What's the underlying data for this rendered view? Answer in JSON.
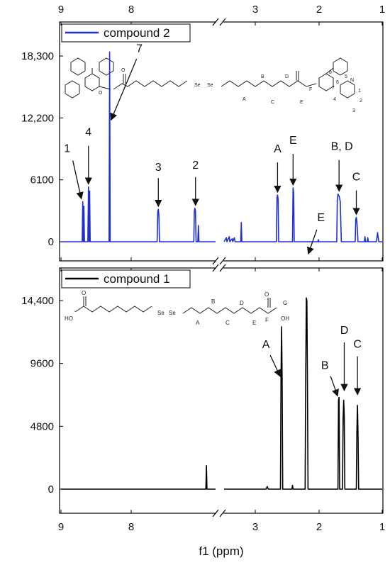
{
  "chart_data": [
    {
      "type": "line",
      "id": "top",
      "title": "",
      "legend": {
        "label": "compound 2",
        "color": "#1f2fd6",
        "position": "top-left"
      },
      "x_axis": {
        "reversed": true,
        "broken": true,
        "segments": [
          {
            "range": [
              9,
              6.3
            ]
          },
          {
            "range": [
              3.75,
              1
            ]
          }
        ],
        "ticks": [
          "9",
          "8",
          "3",
          "2",
          "1"
        ]
      },
      "y_axis": {
        "ticks": [
          "18,300",
          "12,200",
          "6100",
          "0"
        ],
        "ylim": [
          -300,
          21500
        ]
      },
      "annotations": [
        {
          "label": "1",
          "x": 8.62,
          "y": 3950
        },
        {
          "label": "4",
          "x": 8.52,
          "y": 5400
        },
        {
          "label": "7",
          "x": 8.15,
          "y": 18700
        },
        {
          "label": "3",
          "x": 7.3,
          "y": 3200
        },
        {
          "label": "2",
          "x": 6.65,
          "y": 3300
        },
        {
          "label": "A",
          "x": 2.82,
          "y": 4600
        },
        {
          "label": "E",
          "x": 2.55,
          "y": 5300
        },
        {
          "label": "B, D",
          "x": 1.75,
          "y": 4700
        },
        {
          "label": "C",
          "x": 1.45,
          "y": 2400
        }
      ],
      "structure": {
        "labels": [
          "1",
          "2",
          "3",
          "4",
          "5",
          "6",
          "7",
          "8",
          "A",
          "B",
          "C",
          "D",
          "E",
          "F",
          "Se",
          "Se",
          "O",
          "O",
          "N"
        ]
      },
      "series": [
        {
          "color": "#1f2fd6",
          "points": [
            [
              9.0,
              0
            ],
            [
              8.63,
              0
            ],
            [
              8.62,
              3950
            ],
            [
              8.61,
              0
            ],
            [
              8.6,
              3500
            ],
            [
              8.59,
              0
            ],
            [
              8.53,
              0
            ],
            [
              8.52,
              5400
            ],
            [
              8.51,
              0
            ],
            [
              8.5,
              5000
            ],
            [
              8.49,
              0
            ],
            [
              8.16,
              0
            ],
            [
              8.15,
              18700
            ],
            [
              8.14,
              0
            ],
            [
              7.32,
              0
            ],
            [
              7.31,
              3000
            ],
            [
              7.3,
              3200
            ],
            [
              7.29,
              2600
            ],
            [
              7.28,
              0
            ],
            [
              6.68,
              0
            ],
            [
              6.67,
              3000
            ],
            [
              6.66,
              3300
            ],
            [
              6.65,
              3000
            ],
            [
              6.64,
              0
            ],
            [
              6.61,
              0
            ],
            [
              6.6,
              1600
            ],
            [
              6.59,
              0
            ],
            [
              6.3,
              0
            ],
            [
              3.75,
              0
            ],
            [
              3.71,
              400
            ],
            [
              3.7,
              0
            ],
            [
              3.66,
              500
            ],
            [
              3.65,
              0
            ],
            [
              3.61,
              300
            ],
            [
              3.6,
              0
            ],
            [
              3.57,
              400
            ],
            [
              3.56,
              0
            ],
            [
              3.46,
              0
            ],
            [
              3.45,
              1900
            ],
            [
              3.44,
              0
            ],
            [
              2.84,
              0
            ],
            [
              2.83,
              4300
            ],
            [
              2.82,
              4600
            ],
            [
              2.81,
              4200
            ],
            [
              2.8,
              0
            ],
            [
              2.56,
              0
            ],
            [
              2.55,
              5300
            ],
            [
              2.54,
              4800
            ],
            [
              2.53,
              0
            ],
            [
              2.12,
              0
            ],
            [
              2.11,
              200
            ],
            [
              2.1,
              0
            ],
            [
              1.79,
              0
            ],
            [
              1.78,
              4100
            ],
            [
              1.77,
              4700
            ],
            [
              1.75,
              4500
            ],
            [
              1.73,
              4000
            ],
            [
              1.71,
              0
            ],
            [
              1.47,
              0
            ],
            [
              1.46,
              2200
            ],
            [
              1.45,
              2400
            ],
            [
              1.44,
              2000
            ],
            [
              1.42,
              0
            ],
            [
              1.31,
              0
            ],
            [
              1.3,
              500
            ],
            [
              1.29,
              0
            ],
            [
              1.26,
              0
            ],
            [
              1.25,
              400
            ],
            [
              1.24,
              0
            ],
            [
              1.1,
              0
            ],
            [
              1.08,
              900
            ],
            [
              1.06,
              0
            ],
            [
              1.0,
              0
            ]
          ]
        }
      ]
    },
    {
      "type": "line",
      "id": "bottom",
      "title": "",
      "legend": {
        "label": "compound 1",
        "color": "#000000",
        "position": "top-left"
      },
      "x_axis": {
        "reversed": true,
        "broken": true,
        "segments": [
          {
            "range": [
              9,
              6.3
            ]
          },
          {
            "range": [
              3.75,
              1
            ]
          }
        ],
        "ticks": [
          "9",
          "8",
          "3",
          "2",
          "1"
        ],
        "label": "f1 (ppm)"
      },
      "y_axis": {
        "ticks": [
          "14,400",
          "9600",
          "4800",
          "0"
        ],
        "ylim": [
          -300,
          16500
        ]
      },
      "annotations": [
        {
          "label": "A",
          "x": 2.75,
          "y": 8500
        },
        {
          "label": "E",
          "x": 2.31,
          "y": 14500
        },
        {
          "label": "B",
          "x": 1.75,
          "y": 7000
        },
        {
          "label": "D",
          "x": 1.66,
          "y": 7200
        },
        {
          "label": "C",
          "x": 1.43,
          "y": 7000
        }
      ],
      "structure": {
        "labels": [
          "A",
          "B",
          "C",
          "D",
          "E",
          "F",
          "G",
          "Se",
          "Se",
          "HO",
          "OH",
          "O",
          "O"
        ]
      },
      "series": [
        {
          "color": "#000000",
          "points": [
            [
              9.0,
              0
            ],
            [
              6.47,
              0
            ],
            [
              6.46,
              1800
            ],
            [
              6.45,
              0
            ],
            [
              6.3,
              0
            ],
            [
              3.75,
              0
            ],
            [
              3.02,
              0
            ],
            [
              3.0,
              200
            ],
            [
              2.98,
              0
            ],
            [
              2.77,
              0
            ],
            [
              2.76,
              8500
            ],
            [
              2.75,
              12400
            ],
            [
              2.74,
              8300
            ],
            [
              2.73,
              0
            ],
            [
              2.57,
              0
            ],
            [
              2.56,
              300
            ],
            [
              2.55,
              0
            ],
            [
              2.34,
              0
            ],
            [
              2.33,
              8200
            ],
            [
              2.32,
              14600
            ],
            [
              2.31,
              14400
            ],
            [
              2.3,
              8000
            ],
            [
              2.29,
              0
            ],
            [
              1.77,
              0
            ],
            [
              1.76,
              6800
            ],
            [
              1.75,
              7000
            ],
            [
              1.74,
              0
            ],
            [
              1.69,
              0
            ],
            [
              1.68,
              5400
            ],
            [
              1.67,
              6800
            ],
            [
              1.66,
              5600
            ],
            [
              1.65,
              0
            ],
            [
              1.45,
              0
            ],
            [
              1.44,
              4400
            ],
            [
              1.43,
              6400
            ],
            [
              1.42,
              4200
            ],
            [
              1.41,
              0
            ],
            [
              1.0,
              0
            ]
          ]
        }
      ]
    }
  ]
}
